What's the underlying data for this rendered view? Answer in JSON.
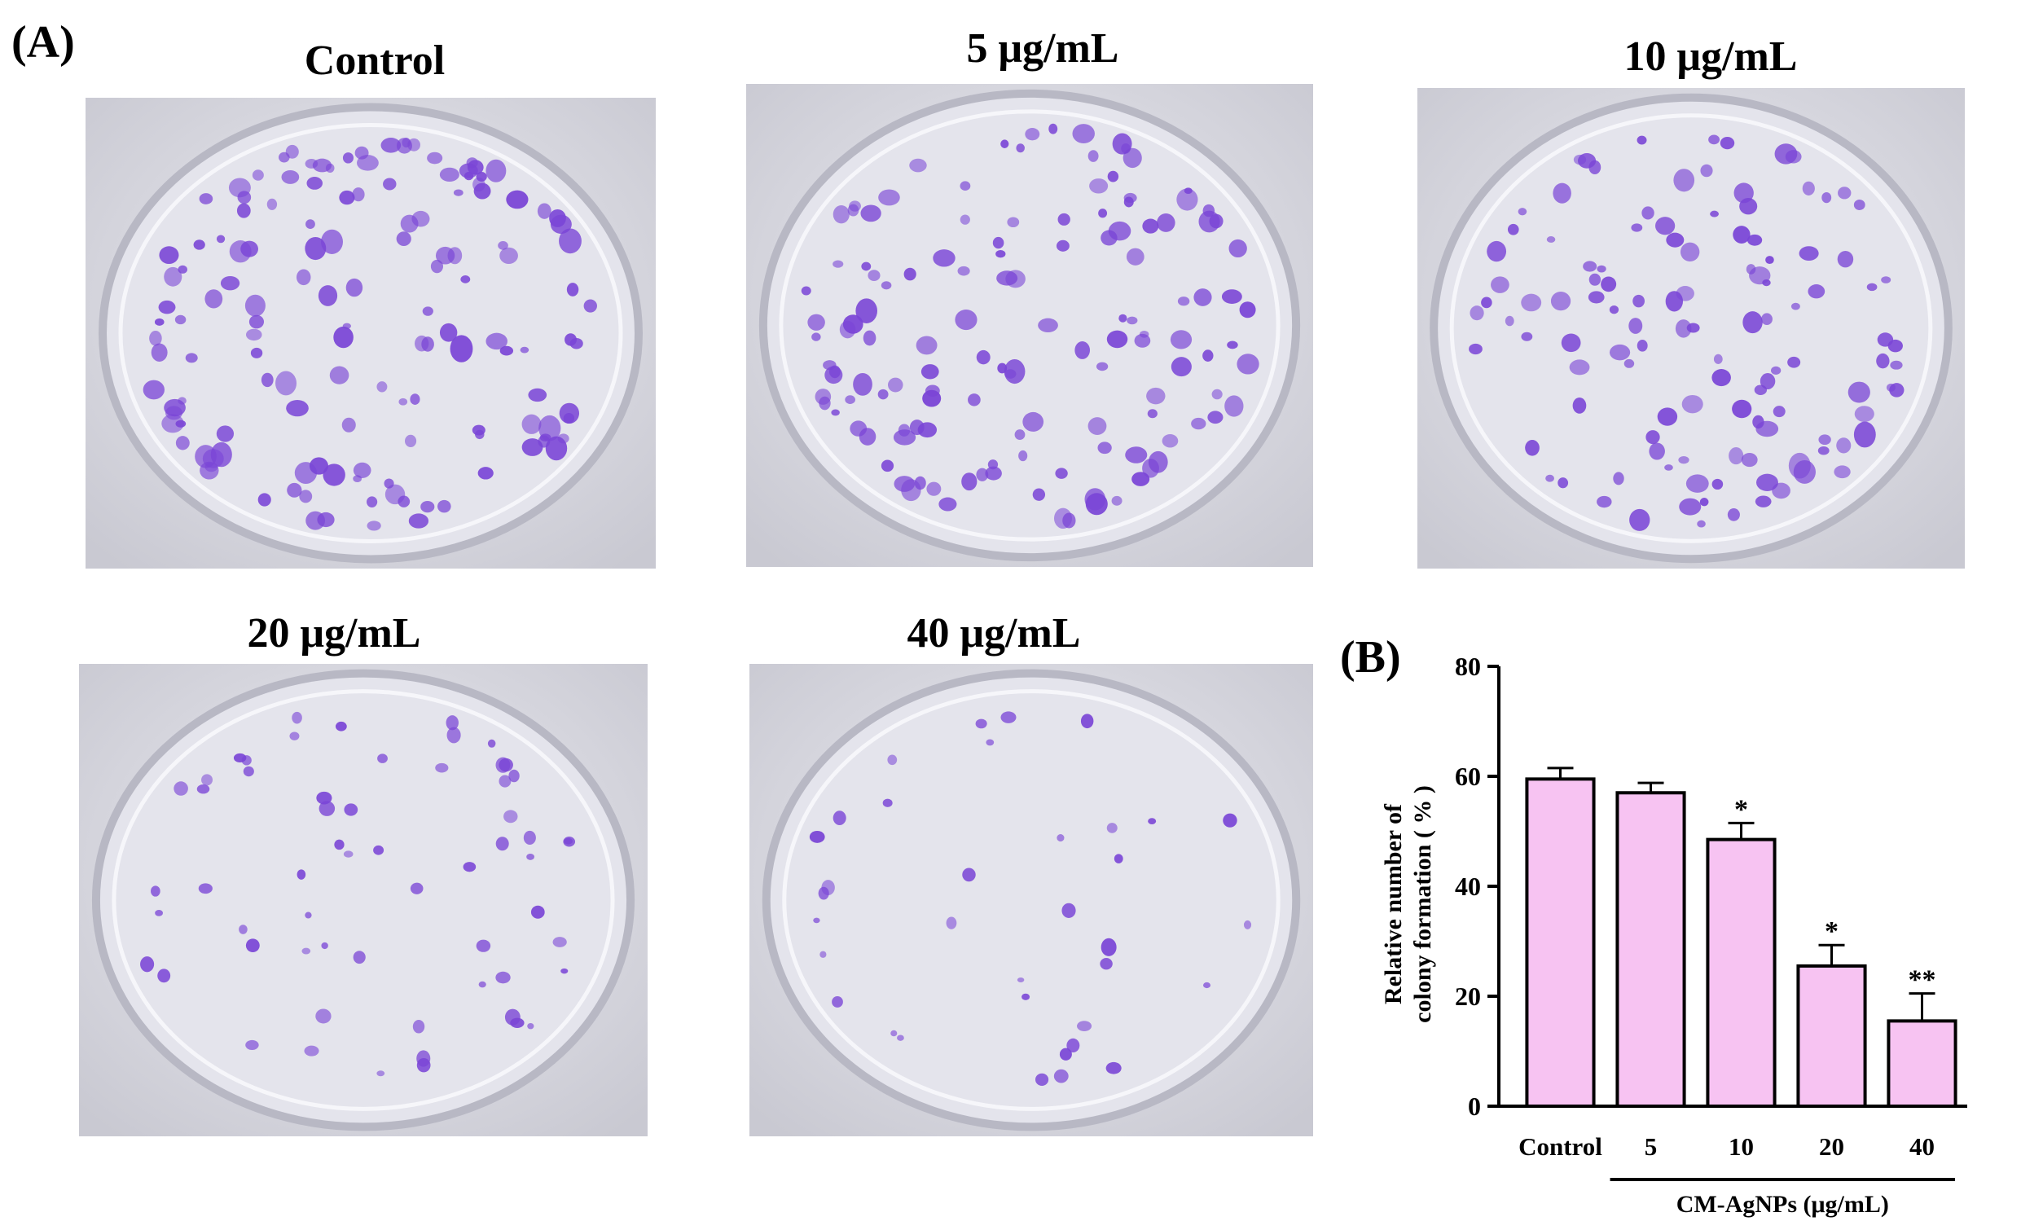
{
  "panel_a_label": "(A)",
  "panel_b_label": "(B)",
  "dish_titles": {
    "control": "Control",
    "d5": "5 μg/mL",
    "d10": "10 μg/mL",
    "d20": "20 μg/mL",
    "d40": "40 μg/mL"
  },
  "colors": {
    "bar_fill": "#f7c3f2",
    "bar_stroke": "#000000",
    "colony": "#7a45d6",
    "plate_bg": "#dcdce4"
  },
  "chart_data": {
    "type": "bar",
    "categories": [
      "Control",
      "5",
      "10",
      "20",
      "40"
    ],
    "values": [
      59.5,
      57,
      48.5,
      25.5,
      15.5
    ],
    "errors": [
      2,
      1.8,
      3,
      3.8,
      5
    ],
    "significance": [
      "",
      "",
      "*",
      "*",
      "**"
    ],
    "ylabel_line1": "Relative number of",
    "ylabel_line2": "colony formation ( % )",
    "xlabel": "CM-AgNPs (μg/mL)",
    "ylim": [
      0,
      80
    ],
    "yticks": [
      "0",
      "20",
      "40",
      "60",
      "80"
    ]
  }
}
